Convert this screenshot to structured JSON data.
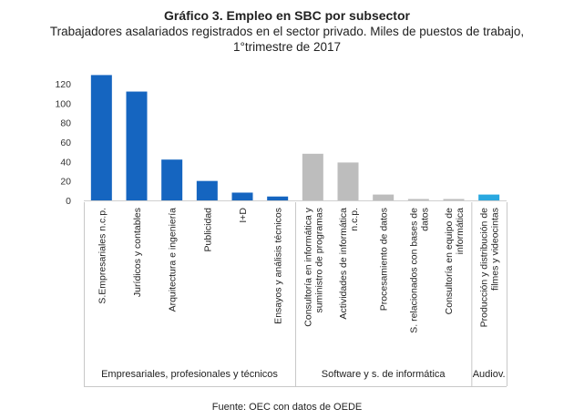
{
  "chart_data": {
    "type": "bar",
    "title": "Gráfico 3. Empleo en SBC por subsector",
    "subtitle": "Trabajadores asalariados registrados en el sector privado. Miles de puestos de trabajo, 1°trimestre de 2017",
    "ylim": [
      0,
      120
    ],
    "yticks": [
      0,
      20,
      40,
      60,
      80,
      100,
      120
    ],
    "categories": [
      "S.Empresariales n.c.p.",
      "Jurídicos y contables",
      "Arquitectura e ingeniería",
      "Publicidad",
      "I+D",
      "Ensayos y análisis técnicos",
      "Consultoría en informática y suministro de programas",
      "Actividades de informática n.c.p.",
      "Procesamiento de datos",
      "S. relacionados con bases de datos",
      "Consultoría en equipo de informática",
      "Producción y distribución de filmes y videocintas"
    ],
    "values": [
      129,
      112,
      42,
      20,
      8,
      4,
      48,
      39,
      6,
      1,
      1,
      6
    ],
    "groups": [
      {
        "name": "Empresariales, profesionales y técnicos",
        "count": 6,
        "color": "#1565C0"
      },
      {
        "name": "Software y s. de informática",
        "count": 5,
        "color": "#BDBDBD"
      },
      {
        "name": "Audiov.",
        "count": 1,
        "color": "#29A8E0"
      }
    ],
    "source": "Fuente: OEC con datos de OEDE"
  }
}
